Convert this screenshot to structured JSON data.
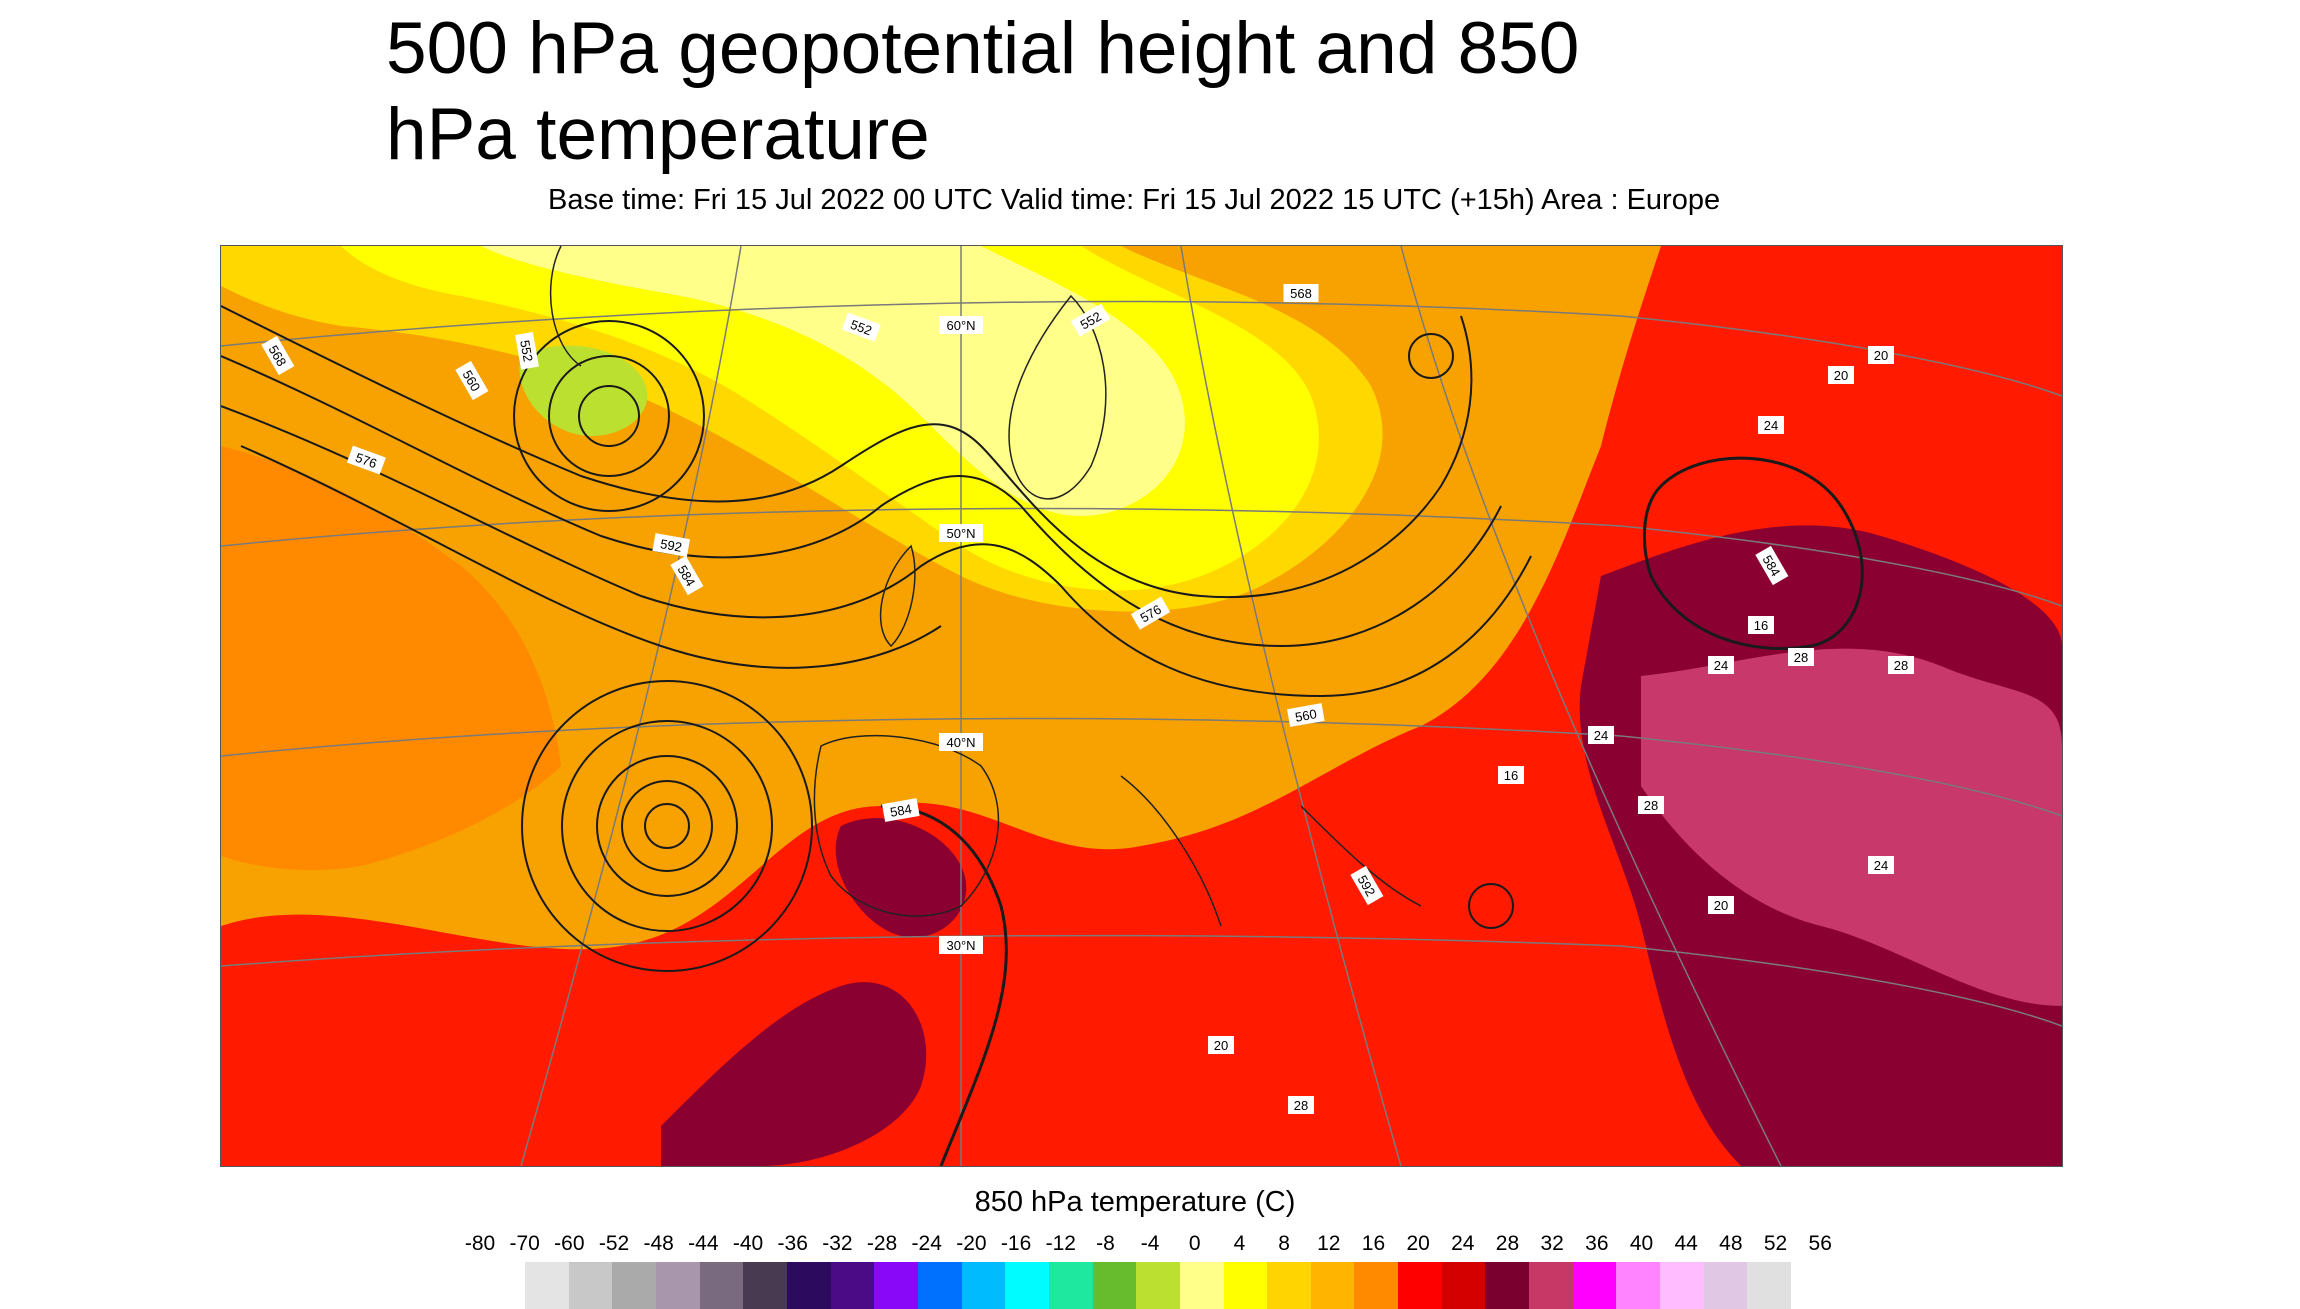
{
  "header": {
    "title": "500 hPa geopotential height and 850 hPa temperature",
    "subtitle": "Base time: Fri 15 Jul 2022 00 UTC Valid time: Fri 15 Jul 2022 15 UTC (+15h) Area : Europe"
  },
  "map": {
    "area": "Europe",
    "contour_labels": [
      "568",
      "560",
      "552",
      "576",
      "552",
      "552",
      "568",
      "584",
      "576",
      "560",
      "592",
      "584",
      "592",
      "584"
    ],
    "graticule_labels": [
      "60°N",
      "50°N",
      "40°N",
      "30°N"
    ],
    "temperature_labels": [
      "24",
      "20",
      "20",
      "24",
      "28",
      "16",
      "28",
      "28",
      "16",
      "20",
      "24",
      "24",
      "20",
      "28"
    ]
  },
  "legend": {
    "title": "850 hPa temperature (C)",
    "ticks": [
      "-80",
      "-70",
      "-60",
      "-52",
      "-48",
      "-44",
      "-40",
      "-36",
      "-32",
      "-28",
      "-24",
      "-20",
      "-16",
      "-12",
      "-8",
      "-4",
      "0",
      "4",
      "8",
      "12",
      "16",
      "20",
      "24",
      "28",
      "32",
      "36",
      "40",
      "44",
      "48",
      "52",
      "56"
    ],
    "colors": [
      "#e4e4e4",
      "#c8c8c8",
      "#aaaaaa",
      "#a896ac",
      "#7a6a80",
      "#483a50",
      "#2c0a5e",
      "#4b0a86",
      "#8a08f8",
      "#0070ff",
      "#00bcff",
      "#00fcff",
      "#1ee8a0",
      "#66bc2c",
      "#bce030",
      "#ffff8a",
      "#ffff00",
      "#ffd400",
      "#ffb400",
      "#ff8a00",
      "#ff0000",
      "#d40000",
      "#7a0030",
      "#c83866",
      "#ff00ff",
      "#ff84ff",
      "#ffbcff",
      "#e0c8e4",
      "#e0e0e0"
    ]
  }
}
